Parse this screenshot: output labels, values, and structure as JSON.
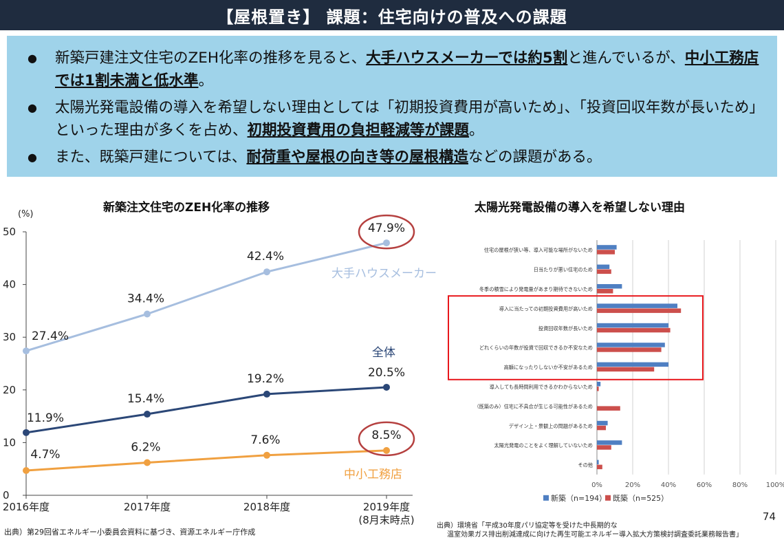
{
  "header": {
    "title": "【屋根置き】 課題：住宅向けの普及への課題"
  },
  "summary": {
    "bullets": [
      {
        "parts": [
          {
            "t": "新築戸建注文住宅のZEH化率の推移を見ると、",
            "u": false
          },
          {
            "t": "大手ハウスメーカーでは約5割",
            "u": true
          },
          {
            "t": "と進んでいるが、",
            "u": false
          },
          {
            "t": "中小工務店では1割未満と低水準",
            "u": true
          },
          {
            "t": "。",
            "u": false
          }
        ]
      },
      {
        "parts": [
          {
            "t": "太陽光発電設備の導入を希望しない理由としては「初期投資費用が高いため」、「投資回収年数が長いため」といった理由が多くを占め、",
            "u": false
          },
          {
            "t": "初期投資費用の負担軽減等が課題",
            "u": true
          },
          {
            "t": "。",
            "u": false
          }
        ]
      },
      {
        "parts": [
          {
            "t": "また、既築戸建については、",
            "u": false
          },
          {
            "t": "耐荷重や屋根の向き等の屋根構造",
            "u": true
          },
          {
            "t": "などの課題がある。",
            "u": false
          }
        ]
      }
    ]
  },
  "left_chart": {
    "title": "新築注文住宅のZEH化率の推移",
    "ylabel_unit": "(%)",
    "source": "出典）第29回省エネルギー小委員会資料に基づき、資源エネルギー庁作成"
  },
  "right_chart": {
    "title": "太陽光発電設備の導入を希望しない理由",
    "source_line1": "出典）環境省「平成30年度パリ協定等を受けた中長期的な",
    "source_line2": "温室効果ガス排出削減達成に向けた再生可能エネルギー導入拡大方策検討調査委託業務報告書」"
  },
  "page_number": "74",
  "chart_data": [
    {
      "type": "line",
      "title": "新築注文住宅のZEH化率の推移",
      "ylabel": "(%)",
      "x": [
        "2016年度",
        "2017年度",
        "2018年度",
        "2019年度\n(8月末時点)"
      ],
      "ylim": [
        0,
        50
      ],
      "yticks": [
        0,
        10,
        20,
        30,
        40,
        50
      ],
      "grid": false,
      "series": [
        {
          "name": "大手ハウスメーカー",
          "color": "#a6bedf",
          "values": [
            27.4,
            34.4,
            42.4,
            47.9
          ],
          "labels": [
            "27.4%",
            "34.4%",
            "42.4%",
            "47.9%"
          ]
        },
        {
          "name": "全体",
          "color": "#2b4777",
          "values": [
            11.9,
            15.4,
            19.2,
            20.5
          ],
          "labels": [
            "11.9%",
            "15.4%",
            "19.2%",
            "20.5%"
          ]
        },
        {
          "name": "中小工務店",
          "color": "#f0a040",
          "values": [
            4.7,
            6.2,
            7.6,
            8.5
          ],
          "labels": [
            "4.7%",
            "6.2%",
            "7.6%",
            "8.5%"
          ]
        }
      ],
      "highlight_color": "#b5403f"
    },
    {
      "type": "bar",
      "orientation": "horizontal",
      "title": "太陽光発電設備の導入を希望しない理由",
      "categories": [
        "住宅の屋根が狭い等、導入可能な場所がないため",
        "日当たりが悪い住宅のため",
        "冬季の積雪により発電量があまり期待できないため",
        "導入に当たっての初期投資費用が高いため",
        "投資回収年数が長いため",
        "どれくらいの年数が投資で回収できるか不安なため",
        "高額になったりしないか不安があるため",
        "導入しても長時間利用できるかわからないため",
        "（既築のみ）住宅に不具合が生じる可能性があるため",
        "デザイン上・景観上の問題があるため",
        "太陽光発電のことをよく理解していないため",
        "その他"
      ],
      "series": [
        {
          "name": "新築（n=194）",
          "color": "#4f7fc2",
          "values": [
            11,
            7,
            14,
            45,
            40,
            38,
            40,
            2,
            0,
            6,
            14,
            1
          ]
        },
        {
          "name": "既築（n=525）",
          "color": "#cc4f4c",
          "values": [
            10,
            8,
            9,
            47,
            41,
            36,
            32,
            1,
            13,
            5,
            8,
            3
          ]
        }
      ],
      "xlim": [
        0,
        100
      ],
      "xticks": [
        "0%",
        "20%",
        "40%",
        "60%",
        "80%",
        "100%"
      ],
      "grid": true,
      "legend_position": "bottom",
      "highlight_color": "#e8161b"
    }
  ]
}
